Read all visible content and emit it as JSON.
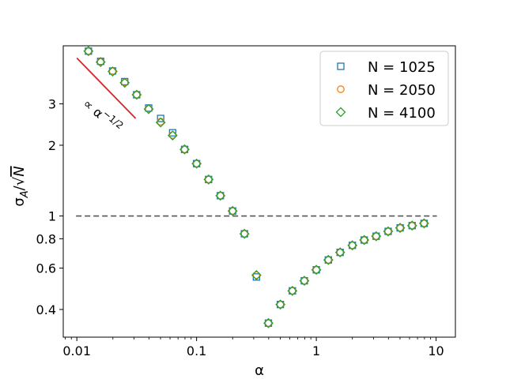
{
  "chart_data": {
    "type": "scatter",
    "xlabel": "α",
    "ylabel": "σ_A/√N",
    "x_scale": "log",
    "y_scale": "log",
    "xlim": [
      0.0077,
      14.5
    ],
    "ylim": [
      0.305,
      5.3
    ],
    "x_ticks": [
      {
        "value": 0.01,
        "label": "0.01"
      },
      {
        "value": 0.1,
        "label": "0.1"
      },
      {
        "value": 1,
        "label": "1"
      },
      {
        "value": 10,
        "label": "10"
      }
    ],
    "y_ticks": [
      {
        "value": 0.4,
        "label": "0.4"
      },
      {
        "value": 0.6,
        "label": "0.6"
      },
      {
        "value": 0.8,
        "label": "0.8"
      },
      {
        "value": 1,
        "label": "1"
      },
      {
        "value": 2,
        "label": "2"
      },
      {
        "value": 3,
        "label": "3"
      }
    ],
    "reference_line": {
      "y": 1,
      "style": "dashed",
      "color": "#555555"
    },
    "guide_line": {
      "x": [
        0.01,
        0.031
      ],
      "y": [
        4.7,
        2.6
      ],
      "color": "#d62728",
      "label": "∝ α^−1/2"
    },
    "legend": {
      "position": "top-right"
    },
    "series": [
      {
        "name": "N = 1025",
        "marker": "square",
        "color": "#1f77b4",
        "x": [
          0.0125,
          0.0158,
          0.0199,
          0.0251,
          0.0316,
          0.0398,
          0.0501,
          0.0631,
          0.0794,
          0.1,
          0.126,
          0.158,
          0.2,
          0.251,
          0.316,
          0.398,
          0.501,
          0.631,
          0.794,
          1.0,
          1.26,
          1.58,
          2.0,
          2.51,
          3.16,
          3.98,
          5.01,
          6.31,
          7.94
        ],
        "y": [
          5.03,
          4.55,
          4.14,
          3.73,
          3.28,
          2.88,
          2.6,
          2.26,
          1.92,
          1.67,
          1.43,
          1.22,
          1.05,
          0.84,
          0.55,
          0.35,
          0.42,
          0.48,
          0.53,
          0.59,
          0.65,
          0.7,
          0.75,
          0.79,
          0.82,
          0.86,
          0.89,
          0.91,
          0.93
        ]
      },
      {
        "name": "N = 2050",
        "marker": "circle",
        "color": "#ff7f0e",
        "x": [
          0.0125,
          0.0158,
          0.0199,
          0.0251,
          0.0316,
          0.0398,
          0.0501,
          0.0631,
          0.0794,
          0.1,
          0.126,
          0.158,
          0.2,
          0.251,
          0.316,
          0.398,
          0.501,
          0.631,
          0.794,
          1.0,
          1.26,
          1.58,
          2.0,
          2.51,
          3.16,
          3.98,
          5.01,
          6.31,
          7.94
        ],
        "y": [
          5.03,
          4.53,
          4.13,
          3.7,
          3.28,
          2.86,
          2.52,
          2.21,
          1.92,
          1.67,
          1.43,
          1.22,
          1.05,
          0.84,
          0.56,
          0.35,
          0.42,
          0.48,
          0.53,
          0.59,
          0.65,
          0.7,
          0.75,
          0.79,
          0.82,
          0.86,
          0.89,
          0.91,
          0.93
        ]
      },
      {
        "name": "N = 4100",
        "marker": "diamond",
        "color": "#2ca02c",
        "x": [
          0.0125,
          0.0158,
          0.0199,
          0.0251,
          0.0316,
          0.0398,
          0.0501,
          0.0631,
          0.0794,
          0.1,
          0.126,
          0.158,
          0.2,
          0.251,
          0.316,
          0.398,
          0.501,
          0.631,
          0.794,
          1.0,
          1.26,
          1.58,
          2.0,
          2.51,
          3.16,
          3.98,
          5.01,
          6.31,
          7.94
        ],
        "y": [
          5.03,
          4.52,
          4.12,
          3.69,
          3.28,
          2.85,
          2.5,
          2.2,
          1.92,
          1.67,
          1.43,
          1.22,
          1.05,
          0.84,
          0.56,
          0.35,
          0.42,
          0.48,
          0.53,
          0.59,
          0.65,
          0.7,
          0.75,
          0.79,
          0.82,
          0.86,
          0.89,
          0.91,
          0.93
        ]
      }
    ]
  }
}
